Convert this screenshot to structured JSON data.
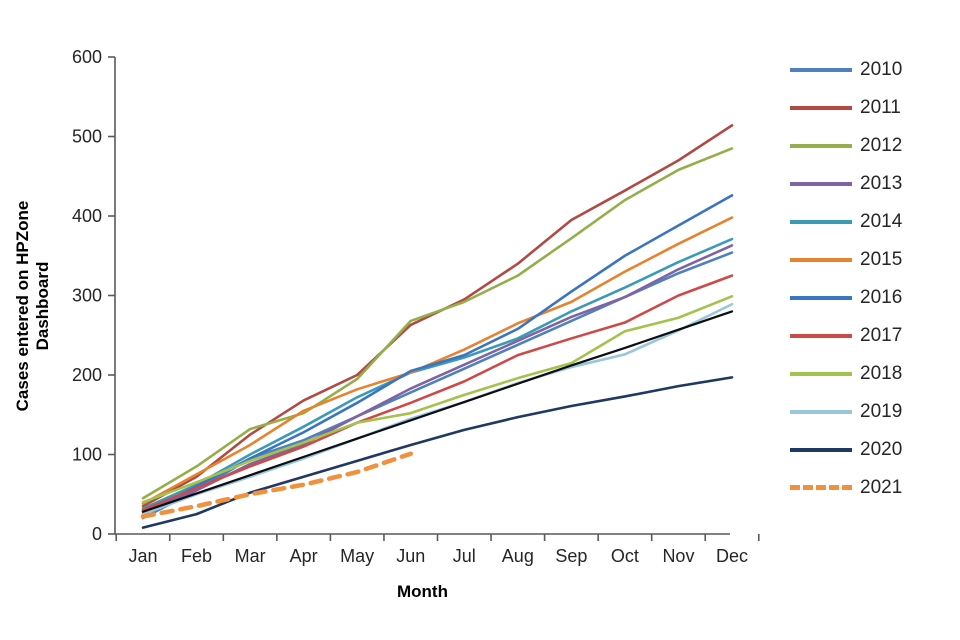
{
  "chart_data": {
    "type": "line",
    "title": "",
    "xlabel": "Month",
    "ylabel": "Cases entered on HPZone Dashboard",
    "categories": [
      "Jan",
      "Feb",
      "Mar",
      "Apr",
      "May",
      "Jun",
      "Jul",
      "Aug",
      "Sep",
      "Oct",
      "Nov",
      "Dec"
    ],
    "ylim": [
      0,
      600
    ],
    "ytick_step": 100,
    "yticks": [
      0,
      100,
      200,
      300,
      400,
      500,
      600
    ],
    "grid": false,
    "legend_position": "right",
    "axis_color": "#595959",
    "tick_label_color": "#262626",
    "series": [
      {
        "name": "2010",
        "color": "#4F81BD",
        "dash": "solid",
        "width": 2.6,
        "in_legend": true,
        "values": [
          20,
          55,
          95,
          118,
          148,
          178,
          208,
          238,
          268,
          298,
          328,
          354
        ]
      },
      {
        "name": "2011",
        "color": "#B04A42",
        "dash": "solid",
        "width": 2.6,
        "in_legend": true,
        "values": [
          35,
          72,
          125,
          168,
          200,
          263,
          295,
          340,
          395,
          432,
          470,
          514
        ]
      },
      {
        "name": "2012",
        "color": "#94AF4A",
        "dash": "solid",
        "width": 2.6,
        "in_legend": true,
        "values": [
          45,
          85,
          132,
          152,
          195,
          268,
          292,
          325,
          372,
          420,
          458,
          485
        ]
      },
      {
        "name": "2013",
        "color": "#8064A2",
        "dash": "solid",
        "width": 2.6,
        "in_legend": true,
        "values": [
          28,
          55,
          88,
          113,
          148,
          183,
          213,
          243,
          273,
          298,
          333,
          363
        ]
      },
      {
        "name": "2014",
        "color": "#3B9BB5",
        "dash": "solid",
        "width": 2.6,
        "in_legend": true,
        "values": [
          32,
          62,
          100,
          135,
          172,
          203,
          222,
          246,
          280,
          310,
          342,
          371
        ]
      },
      {
        "name": "2015",
        "color": "#E6832E",
        "dash": "solid",
        "width": 2.6,
        "in_legend": true,
        "values": [
          38,
          75,
          112,
          155,
          182,
          203,
          232,
          265,
          292,
          330,
          365,
          398
        ]
      },
      {
        "name": "2016",
        "color": "#3A74C2",
        "dash": "solid",
        "width": 2.6,
        "in_legend": true,
        "values": [
          25,
          60,
          95,
          128,
          165,
          205,
          225,
          258,
          305,
          350,
          388,
          426
        ]
      },
      {
        "name": "2017",
        "color": "#CC4B49",
        "dash": "solid",
        "width": 2.6,
        "in_legend": true,
        "values": [
          30,
          58,
          85,
          110,
          140,
          165,
          192,
          225,
          246,
          266,
          300,
          325
        ]
      },
      {
        "name": "2018",
        "color": "#A3C34D",
        "dash": "solid",
        "width": 2.6,
        "in_legend": true,
        "values": [
          40,
          65,
          92,
          115,
          140,
          152,
          175,
          196,
          215,
          255,
          272,
          299
        ]
      },
      {
        "name": "2019",
        "color": "#98C6DC",
        "dash": "solid",
        "width": 2.6,
        "in_legend": true,
        "values": [
          25,
          50,
          72,
          95,
          120,
          145,
          166,
          190,
          210,
          226,
          256,
          289
        ]
      },
      {
        "name": "2020",
        "color": "#1F3864",
        "dash": "solid",
        "width": 2.6,
        "in_legend": true,
        "values": [
          8,
          25,
          52,
          72,
          92,
          112,
          131,
          147,
          161,
          173,
          186,
          197
        ]
      },
      {
        "name": "2021",
        "color": "#F0913D",
        "dash": "dashed",
        "width": 4.5,
        "in_legend": true,
        "values": [
          22,
          35,
          50,
          62,
          78,
          101
        ]
      },
      {
        "name": "reference-trend-line",
        "color": "#0d0d14",
        "dash": "solid",
        "width": 2.2,
        "in_legend": false,
        "values": [
          28,
          51,
          74,
          97,
          120,
          143,
          166,
          189,
          212,
          234,
          257,
          280
        ]
      }
    ]
  }
}
